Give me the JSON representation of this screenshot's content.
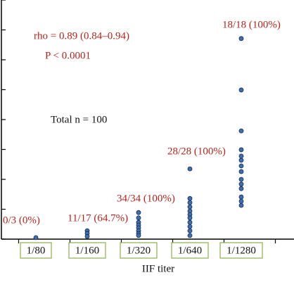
{
  "chart_data": {
    "type": "strip",
    "xlabel": "IIF titer",
    "categories": [
      "1/80",
      "1/160",
      "1/320",
      "1/640",
      "1/1280"
    ],
    "values": [
      [
        0.05
      ],
      [
        0.28,
        0.19,
        0.09
      ],
      [
        0.89,
        0.71,
        0.56,
        0.47,
        0.38,
        0.28,
        0.19,
        0.12
      ],
      [
        2.35,
        1.36,
        1.22,
        1.08,
        0.94,
        0.82,
        0.71,
        0.56,
        0.42,
        0.28,
        0.12
      ],
      [
        6.71,
        4.99,
        3.62,
        2.99,
        2.78,
        2.64,
        2.45,
        2.26,
        2.0,
        1.84,
        1.69,
        1.41,
        1.27,
        1.13
      ]
    ],
    "count_labels": [
      "0/3 (0%)",
      "11/17 (64.7%)",
      "34/34 (100%)",
      "28/28 (100%)",
      "18/18 (100%)"
    ],
    "annotations": [
      "rho = 0.89 (0.84–0.94)",
      "P < 0.0001",
      "Total n = 100"
    ],
    "color": "#3c6fb4",
    "ylim": [
      0,
      8
    ],
    "yticks": [
      0,
      1,
      2,
      3,
      4,
      5,
      6,
      7,
      8
    ]
  }
}
